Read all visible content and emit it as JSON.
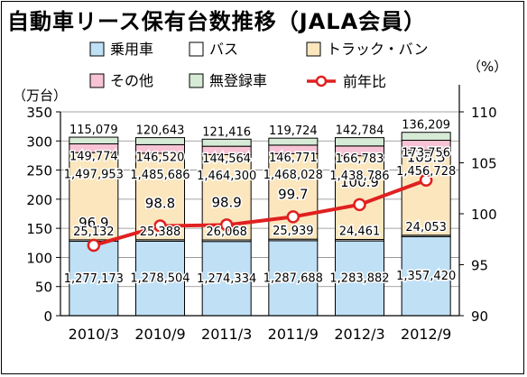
{
  "title": "自動車リース保有台数推移（JALA会員）",
  "chart_data": {
    "type": "bar",
    "stacked": true,
    "categories": [
      "2010/3",
      "2010/9",
      "2011/3",
      "2011/9",
      "2012/3",
      "2012/9"
    ],
    "ylabel": "（万台）",
    "ylim": [
      0,
      350
    ],
    "yticks": [
      "0",
      "50",
      "100",
      "150",
      "200",
      "250",
      "300",
      "350"
    ],
    "y2label": "（%）",
    "y2lim": [
      90,
      110
    ],
    "y2ticks": [
      "90",
      "95",
      "100",
      "105",
      "110"
    ],
    "series": [
      {
        "name": "乗用車",
        "color": "#bfe0f5",
        "values": [
          1277173,
          1278504,
          1274334,
          1287688,
          1283882,
          1357420
        ],
        "labels": [
          "1,277,173",
          "1,278,504",
          "1,274,334",
          "1,287,688",
          "1,283,882",
          "1,357,420"
        ]
      },
      {
        "name": "バス",
        "color": "#ffffff",
        "values": [
          25132,
          25388,
          26068,
          25939,
          24461,
          24053
        ],
        "labels": [
          "25,132",
          "25,388",
          "26,068",
          "25,939",
          "24,461",
          "24,053"
        ]
      },
      {
        "name": "トラック・バン",
        "color": "#fbe6bd",
        "values": [
          1497953,
          1485686,
          1464300,
          1468028,
          1438786,
          1456728
        ],
        "labels": [
          "1,497,953",
          "1,485,686",
          "1,464,300",
          "1,468,028",
          "1,438,786",
          "1,456,728"
        ]
      },
      {
        "name": "その他",
        "color": "#f7c3d5",
        "values": [
          149774,
          146520,
          144564,
          146771,
          166783,
          173756
        ],
        "labels": [
          "149,774",
          "146,520",
          "144,564",
          "146,771",
          "166,783",
          "173,756"
        ]
      },
      {
        "name": "無登録車",
        "color": "#d6ead6",
        "values": [
          115079,
          120643,
          121416,
          119724,
          142784,
          136209
        ],
        "labels": [
          "115,079",
          "120,643",
          "121,416",
          "119,724",
          "142,784",
          "136,209"
        ]
      }
    ],
    "line": {
      "name": "前年比",
      "color": "#e02020",
      "values": [
        96.9,
        98.8,
        98.9,
        99.7,
        100.9,
        103.3
      ],
      "labels": [
        "96.9",
        "98.8",
        "98.9",
        "99.7",
        "100.9",
        "103.3"
      ]
    },
    "legend_position": "top"
  }
}
